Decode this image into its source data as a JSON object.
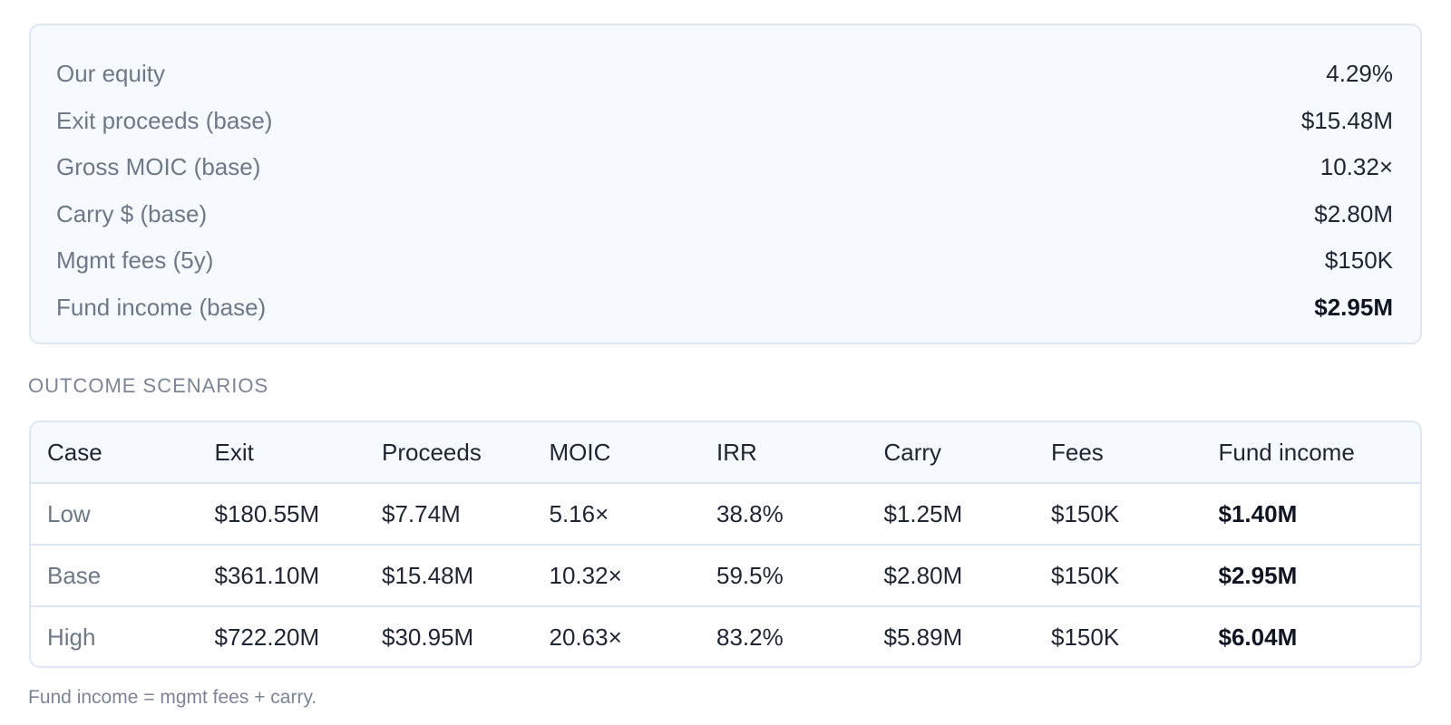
{
  "summary": {
    "rows": [
      {
        "label": "Our equity",
        "value": "4.29%"
      },
      {
        "label": "Exit proceeds (base)",
        "value": "$15.48M"
      },
      {
        "label": "Gross MOIC (base)",
        "value": "10.32×"
      },
      {
        "label": "Carry $ (base)",
        "value": "$2.80M"
      },
      {
        "label": "Mgmt fees (5y)",
        "value": "$150K"
      },
      {
        "label": "Fund income (base)",
        "value": "$2.95M"
      }
    ]
  },
  "scenarios": {
    "title": "OUTCOME SCENARIOS",
    "columns": [
      "Case",
      "Exit",
      "Proceeds",
      "MOIC",
      "IRR",
      "Carry",
      "Fees",
      "Fund income"
    ],
    "rows": [
      {
        "case": "Low",
        "exit": "$180.55M",
        "proceeds": "$7.74M",
        "moic": "5.16×",
        "irr": "38.8%",
        "carry": "$1.25M",
        "fees": "$150K",
        "fund_income": "$1.40M"
      },
      {
        "case": "Base",
        "exit": "$361.10M",
        "proceeds": "$15.48M",
        "moic": "10.32×",
        "irr": "59.5%",
        "carry": "$2.80M",
        "fees": "$150K",
        "fund_income": "$2.95M"
      },
      {
        "case": "High",
        "exit": "$722.20M",
        "proceeds": "$30.95M",
        "moic": "20.63×",
        "irr": "83.2%",
        "carry": "$5.89M",
        "fees": "$150K",
        "fund_income": "$6.04M"
      }
    ]
  },
  "footnote": "Fund income = mgmt fees + carry."
}
